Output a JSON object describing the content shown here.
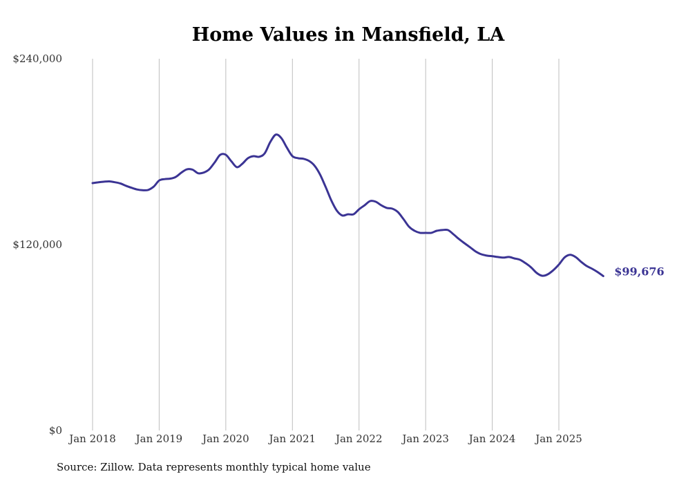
{
  "chart_data": {
    "type": "line",
    "title": "Home Values in Mansfield, LA",
    "xlabel": "",
    "ylabel": "",
    "ylim": [
      0,
      240000
    ],
    "yticks": [
      0,
      120000,
      240000
    ],
    "ytick_labels": [
      "$0",
      "$120,000",
      "$240,000"
    ],
    "xticks": [
      "2018-01",
      "2019-01",
      "2020-01",
      "2021-01",
      "2022-01",
      "2023-01",
      "2024-01",
      "2025-01"
    ],
    "xtick_labels": [
      "Jan 2018",
      "Jan 2019",
      "Jan 2020",
      "Jan 2021",
      "Jan 2022",
      "Jan 2023",
      "Jan 2024",
      "Jan 2025"
    ],
    "grid": "vertical",
    "line_color": "#3b3494",
    "end_label": "$99,676",
    "series": [
      {
        "name": "Typical home value",
        "start": "2018-01",
        "frequency": "monthly",
        "values": [
          159700,
          160200,
          160600,
          160800,
          160300,
          159500,
          158000,
          156700,
          155600,
          155100,
          155300,
          157400,
          161400,
          162300,
          162600,
          163700,
          166500,
          168600,
          168400,
          166100,
          166500,
          168600,
          173100,
          178000,
          178000,
          173800,
          170000,
          172300,
          175800,
          177100,
          176700,
          178900,
          186100,
          191000,
          188800,
          182600,
          177100,
          175800,
          175400,
          174000,
          170900,
          165100,
          157100,
          148600,
          141900,
          138800,
          139600,
          139600,
          142800,
          145400,
          148100,
          147700,
          145400,
          143700,
          143200,
          141000,
          136500,
          131600,
          128900,
          127600,
          127600,
          127600,
          128900,
          129400,
          129400,
          126700,
          123600,
          120900,
          118300,
          115600,
          113800,
          112900,
          112500,
          112000,
          111600,
          112000,
          111100,
          110200,
          108000,
          105300,
          101700,
          99900,
          100800,
          103500,
          107100,
          111600,
          113400,
          112000,
          108900,
          106200,
          104400,
          102200,
          99676
        ]
      }
    ]
  },
  "source_note": "Source: Zillow. Data represents monthly typical home value"
}
